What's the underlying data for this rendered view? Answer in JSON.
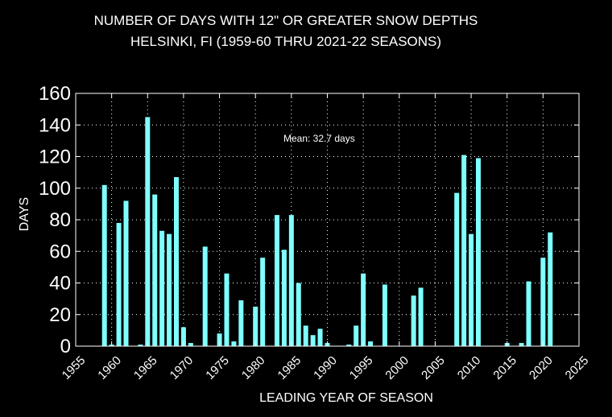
{
  "chart_data": {
    "type": "bar",
    "title": "NUMBER OF DAYS WITH 12\" OR GREATER SNOW DEPTHS",
    "subtitle": "HELSINKI, FI (1959-60 THRU 2021-22 SEASONS)",
    "xlabel": "LEADING YEAR OF SEASON",
    "ylabel": "DAYS",
    "annotation": "Mean: 32.7 days",
    "xlim": [
      1955,
      2025
    ],
    "ylim": [
      0,
      160
    ],
    "xticks": [
      1955,
      1960,
      1965,
      1970,
      1975,
      1980,
      1985,
      1990,
      1995,
      2000,
      2005,
      2010,
      2015,
      2020,
      2025
    ],
    "yticks": [
      0,
      20,
      40,
      60,
      80,
      100,
      120,
      140,
      160
    ],
    "grid": true,
    "bar_color": "#7fffff",
    "background": "#000000",
    "x": [
      1959,
      1960,
      1961,
      1962,
      1963,
      1964,
      1965,
      1966,
      1967,
      1968,
      1969,
      1970,
      1971,
      1972,
      1973,
      1974,
      1975,
      1976,
      1977,
      1978,
      1979,
      1980,
      1981,
      1982,
      1983,
      1984,
      1985,
      1986,
      1987,
      1988,
      1989,
      1990,
      1991,
      1992,
      1993,
      1994,
      1995,
      1996,
      1997,
      1998,
      1999,
      2000,
      2001,
      2002,
      2003,
      2004,
      2005,
      2006,
      2007,
      2008,
      2009,
      2010,
      2011,
      2012,
      2013,
      2014,
      2015,
      2016,
      2017,
      2018,
      2019,
      2020,
      2021
    ],
    "values": [
      102,
      1,
      78,
      92,
      0,
      1,
      145,
      96,
      73,
      71,
      107,
      12,
      2,
      0,
      63,
      0,
      8,
      46,
      3,
      29,
      0,
      25,
      56,
      0,
      83,
      61,
      83,
      40,
      13,
      7,
      11,
      2,
      0,
      0,
      1,
      13,
      46,
      3,
      0,
      39,
      0,
      0,
      0,
      32,
      37,
      0,
      0,
      0,
      0,
      97,
      121,
      71,
      119,
      0,
      0,
      0,
      2,
      0,
      2,
      41,
      0,
      56,
      72
    ]
  }
}
